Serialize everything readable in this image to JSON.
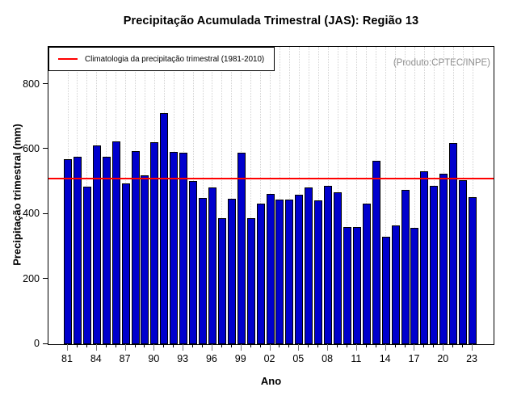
{
  "title": "Precipitação Acumulada Trimestral (JAS): Região 13",
  "watermark": "(Produto:CPTEC/INPE)",
  "legend": {
    "label": "Climatologia da precipitação trimestral (1981-2010)",
    "position": "top-left"
  },
  "colors": {
    "bar_fill": "#0000CD",
    "bar_border": "#000000",
    "climatology_line": "#FF0000",
    "grid": "#D2D2D2",
    "watermark_text": "#8F8F8F",
    "axis": "#000000"
  },
  "chart_data": {
    "type": "bar",
    "title": "Precipitação Acumulada Trimestral (JAS): Região 13",
    "xlabel": "Ano",
    "ylabel": "Precipitação trimestral (mm)",
    "ylim": [
      0,
      916
    ],
    "y_ticks": [
      0,
      200,
      400,
      600,
      800
    ],
    "x_tick_labels": [
      "81",
      "84",
      "87",
      "90",
      "93",
      "96",
      "99",
      "02",
      "05",
      "08",
      "11",
      "14",
      "17",
      "20",
      "23"
    ],
    "grid": "vertical-dotted",
    "legend_position": "top-left",
    "climatology_value": 511,
    "years": [
      1981,
      1982,
      1983,
      1984,
      1985,
      1986,
      1987,
      1988,
      1989,
      1990,
      1991,
      1992,
      1993,
      1994,
      1995,
      1996,
      1997,
      1998,
      1999,
      2000,
      2001,
      2002,
      2003,
      2004,
      2005,
      2006,
      2007,
      2008,
      2009,
      2010,
      2011,
      2012,
      2013,
      2014,
      2015,
      2016,
      2017,
      2018,
      2019,
      2020,
      2021,
      2022,
      2023
    ],
    "values": [
      570,
      577,
      486,
      612,
      578,
      626,
      495,
      596,
      521,
      622,
      711,
      592,
      591,
      502,
      450,
      482,
      389,
      449,
      589,
      389,
      432,
      463,
      445,
      446,
      460,
      482,
      443,
      489,
      468,
      360,
      361,
      432,
      564,
      330,
      367,
      475,
      358,
      533,
      487,
      526,
      621,
      505,
      452
    ]
  }
}
